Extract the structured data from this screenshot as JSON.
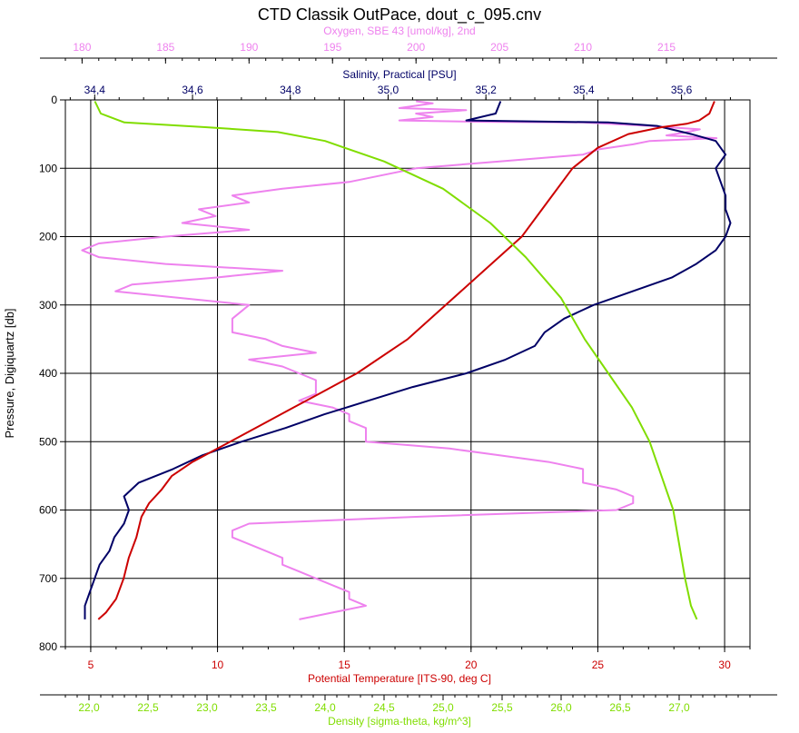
{
  "chart_data": {
    "type": "line",
    "title": "CTD Classik OutPace, dout_c_095.cnv",
    "y_axis": {
      "label": "Pressure, Digiquartz [db]",
      "range": [
        0,
        800
      ],
      "inverted": true,
      "ticks": [
        "0",
        "100",
        "200",
        "300",
        "400",
        "500",
        "600",
        "700",
        "800"
      ]
    },
    "x_axes": [
      {
        "id": "oxygen",
        "label": "Oxygen, SBE 43 [umol/kg], 2nd",
        "position": "top",
        "color": "#ee82ee",
        "range": [
          179,
          220
        ],
        "ticks": [
          "180",
          "185",
          "190",
          "195",
          "200",
          "205",
          "210",
          "215"
        ]
      },
      {
        "id": "salinity",
        "label": "Salinity, Practical [PSU]",
        "position": "top",
        "color": "#000066",
        "range": [
          34.34,
          35.74
        ],
        "ticks": [
          "34,4",
          "34,6",
          "34,8",
          "35,0",
          "35,2",
          "35,4",
          "35,6"
        ]
      },
      {
        "id": "temperature",
        "label": "Potential Temperature [ITS-90, deg C]",
        "position": "bottom",
        "color": "#cc0000",
        "range": [
          4,
          31
        ],
        "ticks": [
          "5",
          "10",
          "15",
          "20",
          "25",
          "30"
        ]
      },
      {
        "id": "density",
        "label": "Density [sigma-theta, kg/m^3]",
        "position": "bottom",
        "color": "#80dd00",
        "range": [
          21.8,
          27.6
        ],
        "ticks": [
          "22,0",
          "22,5",
          "23,0",
          "23,5",
          "24,0",
          "24,5",
          "25,0",
          "25,5",
          "26,0",
          "26,5",
          "27,0"
        ]
      }
    ],
    "grid": true,
    "series": [
      {
        "name": "Oxygen",
        "axis": "oxygen",
        "color": "#ee82ee",
        "points": [
          [
            200,
            2
          ],
          [
            201,
            5
          ],
          [
            199,
            12
          ],
          [
            203,
            15
          ],
          [
            200,
            20
          ],
          [
            201,
            25
          ],
          [
            199,
            30
          ],
          [
            204,
            32
          ],
          [
            210,
            33
          ],
          [
            214,
            38
          ],
          [
            217,
            43
          ],
          [
            216,
            48
          ],
          [
            215,
            52
          ],
          [
            218,
            56
          ],
          [
            214,
            60
          ],
          [
            213,
            65
          ],
          [
            211,
            72
          ],
          [
            210,
            80
          ],
          [
            205,
            90
          ],
          [
            200,
            100
          ],
          [
            198,
            110
          ],
          [
            196,
            120
          ],
          [
            192,
            130
          ],
          [
            189,
            140
          ],
          [
            190,
            150
          ],
          [
            187,
            160
          ],
          [
            188,
            170
          ],
          [
            186,
            180
          ],
          [
            190,
            190
          ],
          [
            185,
            200
          ],
          [
            181,
            210
          ],
          [
            180,
            220
          ],
          [
            181,
            230
          ],
          [
            185,
            240
          ],
          [
            192,
            250
          ],
          [
            188,
            260
          ],
          [
            183,
            270
          ],
          [
            182,
            280
          ],
          [
            186,
            290
          ],
          [
            190,
            300
          ],
          [
            189,
            320
          ],
          [
            189,
            340
          ],
          [
            191,
            350
          ],
          [
            192,
            360
          ],
          [
            194,
            370
          ],
          [
            190,
            380
          ],
          [
            192,
            390
          ],
          [
            193,
            400
          ],
          [
            194,
            410
          ],
          [
            194,
            430
          ],
          [
            193,
            440
          ],
          [
            195,
            450
          ],
          [
            196,
            460
          ],
          [
            196,
            470
          ],
          [
            197,
            480
          ],
          [
            197,
            490
          ],
          [
            197,
            500
          ],
          [
            202,
            510
          ],
          [
            205,
            520
          ],
          [
            208,
            530
          ],
          [
            210,
            540
          ],
          [
            210,
            560
          ],
          [
            212,
            570
          ],
          [
            213,
            580
          ],
          [
            213,
            590
          ],
          [
            212,
            600
          ],
          [
            200,
            610
          ],
          [
            190,
            620
          ],
          [
            189,
            630
          ],
          [
            189,
            640
          ],
          [
            190,
            650
          ],
          [
            191,
            660
          ],
          [
            192,
            670
          ],
          [
            192,
            680
          ],
          [
            193,
            690
          ],
          [
            194,
            700
          ],
          [
            195,
            710
          ],
          [
            196,
            720
          ],
          [
            196,
            730
          ],
          [
            197,
            740
          ],
          [
            195,
            750
          ],
          [
            193,
            760
          ]
        ]
      },
      {
        "name": "Salinity",
        "axis": "salinity",
        "color": "#000066",
        "points": [
          [
            35.23,
            2
          ],
          [
            35.22,
            20
          ],
          [
            35.16,
            30
          ],
          [
            35.45,
            33
          ],
          [
            35.55,
            38
          ],
          [
            35.62,
            50
          ],
          [
            35.67,
            60
          ],
          [
            35.69,
            80
          ],
          [
            35.67,
            100
          ],
          [
            35.68,
            120
          ],
          [
            35.69,
            140
          ],
          [
            35.69,
            160
          ],
          [
            35.7,
            180
          ],
          [
            35.69,
            200
          ],
          [
            35.67,
            220
          ],
          [
            35.63,
            240
          ],
          [
            35.58,
            260
          ],
          [
            35.5,
            280
          ],
          [
            35.42,
            300
          ],
          [
            35.36,
            320
          ],
          [
            35.32,
            340
          ],
          [
            35.3,
            360
          ],
          [
            35.24,
            380
          ],
          [
            35.16,
            400
          ],
          [
            35.05,
            420
          ],
          [
            34.96,
            440
          ],
          [
            34.87,
            460
          ],
          [
            34.79,
            480
          ],
          [
            34.7,
            500
          ],
          [
            34.62,
            520
          ],
          [
            34.56,
            540
          ],
          [
            34.49,
            560
          ],
          [
            34.46,
            580
          ],
          [
            34.47,
            600
          ],
          [
            34.46,
            620
          ],
          [
            34.44,
            640
          ],
          [
            34.43,
            660
          ],
          [
            34.41,
            680
          ],
          [
            34.4,
            700
          ],
          [
            34.39,
            720
          ],
          [
            34.38,
            740
          ],
          [
            34.38,
            760
          ]
        ]
      },
      {
        "name": "Potential Temperature",
        "axis": "temperature",
        "color": "#cc0000",
        "points": [
          [
            29.6,
            2
          ],
          [
            29.4,
            20
          ],
          [
            29.0,
            30
          ],
          [
            28.5,
            35
          ],
          [
            27.5,
            40
          ],
          [
            26.2,
            50
          ],
          [
            25.0,
            70
          ],
          [
            24.0,
            100
          ],
          [
            23.0,
            150
          ],
          [
            22.0,
            200
          ],
          [
            20.5,
            250
          ],
          [
            19.0,
            300
          ],
          [
            17.5,
            350
          ],
          [
            15.5,
            400
          ],
          [
            14.0,
            430
          ],
          [
            13.0,
            450
          ],
          [
            11.5,
            480
          ],
          [
            10.0,
            510
          ],
          [
            9.0,
            530
          ],
          [
            8.2,
            550
          ],
          [
            7.8,
            570
          ],
          [
            7.3,
            590
          ],
          [
            7.0,
            610
          ],
          [
            6.8,
            640
          ],
          [
            6.5,
            670
          ],
          [
            6.3,
            700
          ],
          [
            6.0,
            730
          ],
          [
            5.6,
            750
          ],
          [
            5.3,
            760
          ]
        ]
      },
      {
        "name": "Density",
        "axis": "density",
        "color": "#80dd00",
        "points": [
          [
            22.05,
            2
          ],
          [
            22.1,
            20
          ],
          [
            22.3,
            33
          ],
          [
            23.0,
            40
          ],
          [
            23.6,
            47
          ],
          [
            24.0,
            60
          ],
          [
            24.5,
            90
          ],
          [
            25.0,
            130
          ],
          [
            25.4,
            180
          ],
          [
            25.7,
            230
          ],
          [
            26.0,
            290
          ],
          [
            26.2,
            350
          ],
          [
            26.4,
            400
          ],
          [
            26.6,
            450
          ],
          [
            26.75,
            500
          ],
          [
            26.85,
            550
          ],
          [
            26.95,
            600
          ],
          [
            27.0,
            650
          ],
          [
            27.05,
            700
          ],
          [
            27.1,
            740
          ],
          [
            27.15,
            760
          ]
        ]
      }
    ]
  }
}
